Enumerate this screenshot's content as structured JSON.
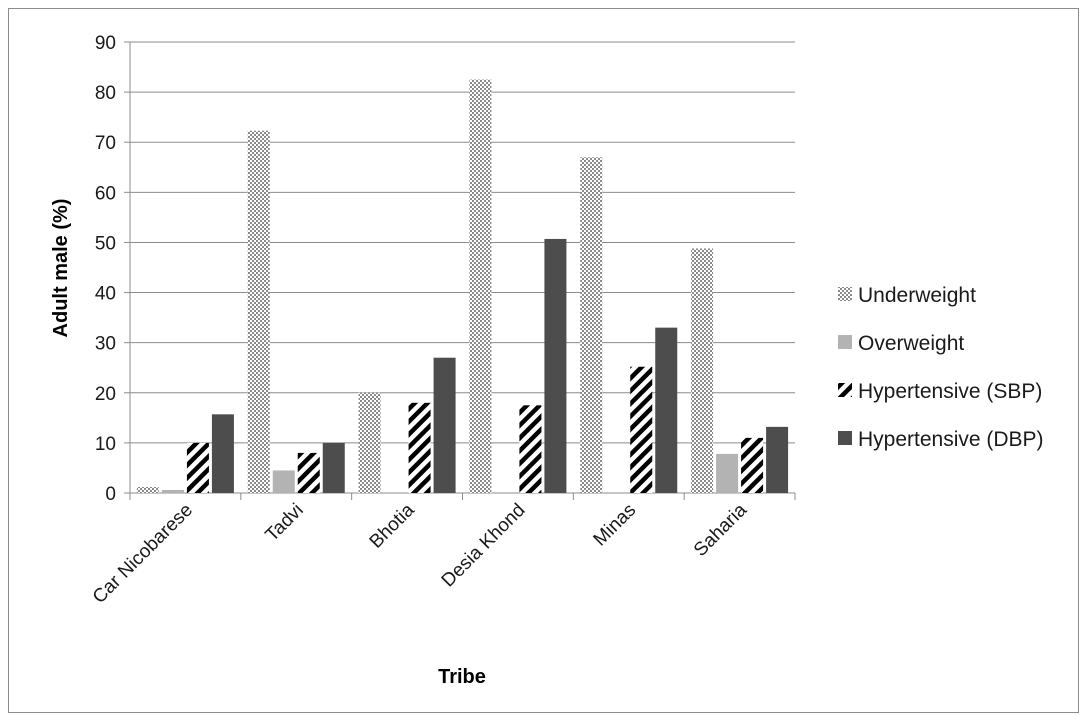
{
  "chart_data": {
    "type": "bar",
    "title": "",
    "xlabel": "Tribe",
    "ylabel": "Adult male (%)",
    "ylim": [
      0,
      90
    ],
    "yticks": [
      0,
      10,
      20,
      30,
      40,
      50,
      60,
      70,
      80,
      90
    ],
    "grid": true,
    "legend_position": "right",
    "categories": [
      "Car Nicobarese",
      "Tadvi",
      "Bhotia",
      "Desia Khond",
      "Minas",
      "Saharia"
    ],
    "series": [
      {
        "name": "Underweight",
        "values": [
          1.2,
          72.3,
          20,
          82.5,
          67,
          48.8
        ],
        "pattern": "dots"
      },
      {
        "name": "Overweight",
        "values": [
          0.6,
          4.5,
          0,
          0,
          0,
          7.8
        ],
        "pattern": "solid-light",
        "color": "#b3b3b3"
      },
      {
        "name": "Hypertensive (SBP)",
        "values": [
          10,
          8,
          18,
          17.5,
          25.2,
          11
        ],
        "pattern": "diagonal"
      },
      {
        "name": "Hypertensive (DBP)",
        "values": [
          15.7,
          10,
          27,
          50.7,
          33,
          13.2
        ],
        "pattern": "solid-dark",
        "color": "#4d4d4d"
      }
    ]
  }
}
